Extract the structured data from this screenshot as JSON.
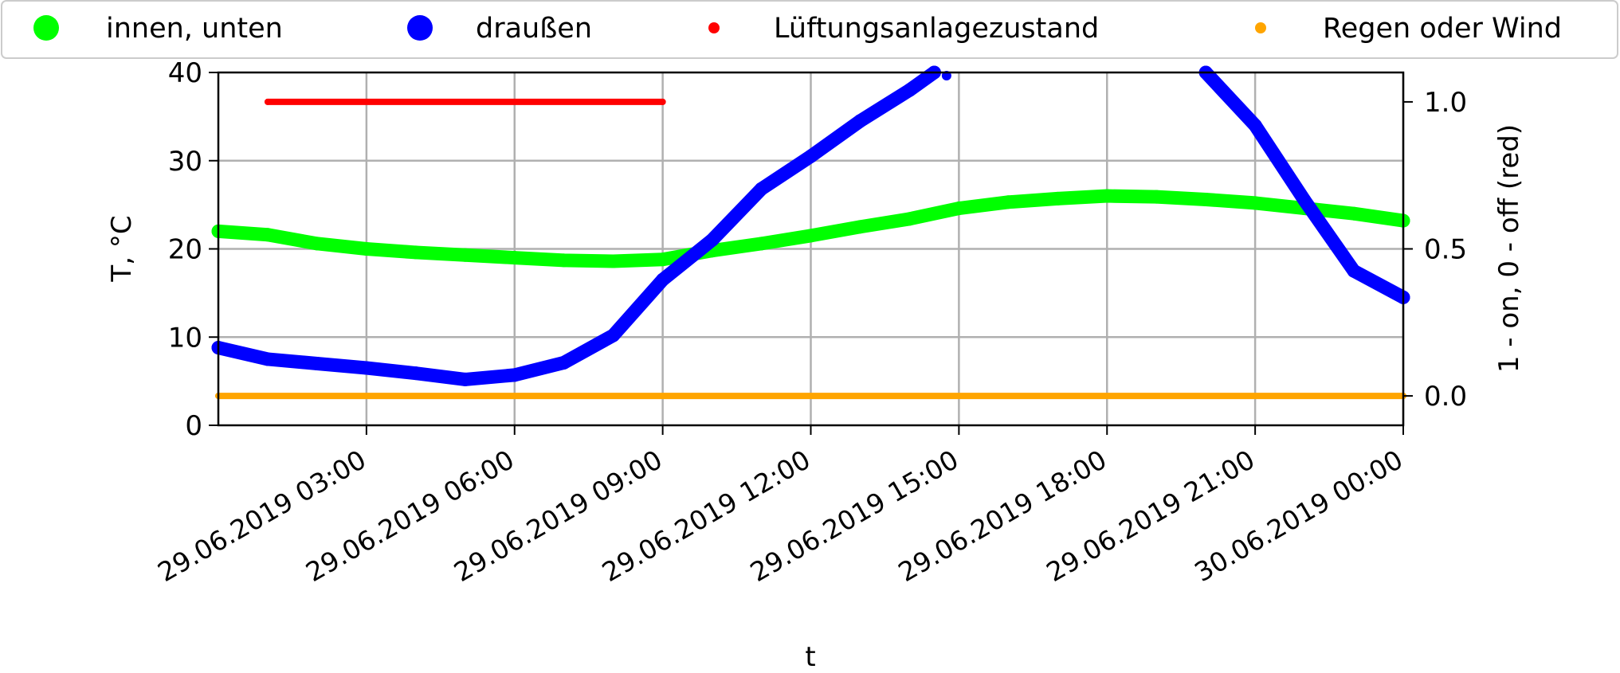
{
  "chart_data": {
    "type": "scatter",
    "title": "",
    "xlabel": "t",
    "ylabel": "T, °C",
    "y2label": "1 - on, 0 - off (red)",
    "xlim": [
      "2019-06-29 00:00",
      "2019-06-30 00:00"
    ],
    "ylim": [
      0,
      40
    ],
    "y2lim": [
      -0.1,
      1.1
    ],
    "grid": true,
    "legend_position": "top",
    "x_ticks": [
      {
        "t": "2019-06-29 03:00",
        "label": "29.06.2019 03:00"
      },
      {
        "t": "2019-06-29 06:00",
        "label": "29.06.2019 06:00"
      },
      {
        "t": "2019-06-29 09:00",
        "label": "29.06.2019 09:00"
      },
      {
        "t": "2019-06-29 12:00",
        "label": "29.06.2019 12:00"
      },
      {
        "t": "2019-06-29 15:00",
        "label": "29.06.2019 15:00"
      },
      {
        "t": "2019-06-29 18:00",
        "label": "29.06.2019 18:00"
      },
      {
        "t": "2019-06-29 21:00",
        "label": "29.06.2019 21:00"
      },
      {
        "t": "2019-06-30 00:00",
        "label": "30.06.2019 00:00"
      }
    ],
    "y_ticks": [
      "0",
      "10",
      "20",
      "30",
      "40"
    ],
    "y2_ticks": [
      "0.0",
      "0.5",
      "1.0"
    ],
    "series": [
      {
        "name": "innen, unten",
        "axis": "left",
        "color": "#00ff00",
        "marker_size": "large",
        "points": [
          [
            "2019-06-29 00:00",
            22.0
          ],
          [
            "2019-06-29 01:00",
            21.6
          ],
          [
            "2019-06-29 02:00",
            20.6
          ],
          [
            "2019-06-29 03:00",
            20.0
          ],
          [
            "2019-06-29 04:00",
            19.6
          ],
          [
            "2019-06-29 05:00",
            19.3
          ],
          [
            "2019-06-29 06:00",
            19.0
          ],
          [
            "2019-06-29 07:00",
            18.7
          ],
          [
            "2019-06-29 08:00",
            18.6
          ],
          [
            "2019-06-29 09:00",
            18.8
          ],
          [
            "2019-06-29 10:00",
            19.8
          ],
          [
            "2019-06-29 11:00",
            20.6
          ],
          [
            "2019-06-29 12:00",
            21.5
          ],
          [
            "2019-06-29 13:00",
            22.5
          ],
          [
            "2019-06-29 14:00",
            23.4
          ],
          [
            "2019-06-29 15:00",
            24.6
          ],
          [
            "2019-06-29 16:00",
            25.3
          ],
          [
            "2019-06-29 17:00",
            25.7
          ],
          [
            "2019-06-29 18:00",
            26.0
          ],
          [
            "2019-06-29 19:00",
            25.9
          ],
          [
            "2019-06-29 20:00",
            25.6
          ],
          [
            "2019-06-29 21:00",
            25.2
          ],
          [
            "2019-06-29 22:00",
            24.6
          ],
          [
            "2019-06-29 23:00",
            24.0
          ],
          [
            "2019-06-30 00:00",
            23.2
          ]
        ]
      },
      {
        "name": "draußen",
        "axis": "left",
        "color": "#0000ff",
        "marker_size": "large",
        "points": [
          [
            "2019-06-29 00:00",
            8.8
          ],
          [
            "2019-06-29 01:00",
            7.5
          ],
          [
            "2019-06-29 02:00",
            7.0
          ],
          [
            "2019-06-29 03:00",
            6.5
          ],
          [
            "2019-06-29 04:00",
            5.9
          ],
          [
            "2019-06-29 05:00",
            5.2
          ],
          [
            "2019-06-29 06:00",
            5.7
          ],
          [
            "2019-06-29 07:00",
            7.1
          ],
          [
            "2019-06-29 08:00",
            10.2
          ],
          [
            "2019-06-29 09:00",
            16.5
          ],
          [
            "2019-06-29 10:00",
            21.0
          ],
          [
            "2019-06-29 11:00",
            26.8
          ],
          [
            "2019-06-29 12:00",
            30.5
          ],
          [
            "2019-06-29 13:00",
            34.5
          ],
          [
            "2019-06-29 14:00",
            38.0
          ],
          [
            "2019-06-29 14:30",
            40.0
          ],
          [
            "2019-06-29 20:00",
            40.0
          ],
          [
            "2019-06-29 21:00",
            34.0
          ],
          [
            "2019-06-29 22:00",
            25.5
          ],
          [
            "2019-06-29 23:00",
            17.5
          ],
          [
            "2019-06-30 00:00",
            14.5
          ]
        ],
        "extra_points": [
          [
            "2019-06-29 14:45",
            40.0
          ]
        ]
      },
      {
        "name": "Lüftungsanlagezustand",
        "axis": "right",
        "color": "#ff0000",
        "marker_size": "small",
        "points": [
          [
            "2019-06-29 01:00",
            1.0
          ],
          [
            "2019-06-29 09:00",
            1.0
          ]
        ]
      },
      {
        "name": "Regen oder Wind",
        "axis": "right",
        "color": "#ffa500",
        "marker_size": "small",
        "points": [
          [
            "2019-06-29 00:00",
            0.0
          ],
          [
            "2019-06-30 00:00",
            0.0
          ]
        ]
      }
    ]
  }
}
